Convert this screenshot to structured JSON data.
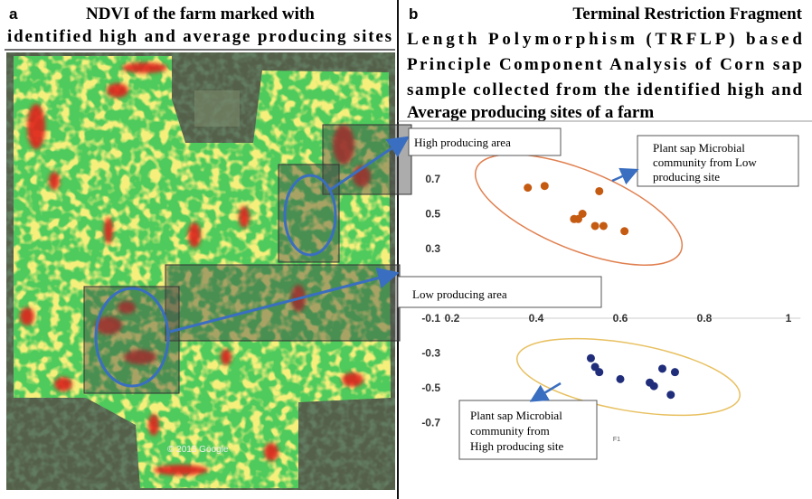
{
  "panel_a": {
    "letter": "a",
    "title_lines": [
      "NDVI of the farm marked with",
      "identified high and average producing sites"
    ],
    "map_credit": "© 2015 Google"
  },
  "panel_b": {
    "letter": "b",
    "title_lines": [
      "Terminal Restriction Fragment",
      "Length Polymorphism (TRFLP) based",
      "Principle Component Analysis of Corn sap",
      "sample collected from the identified high and",
      "Average producing sites of a farm"
    ]
  },
  "annotations": {
    "high_area": "High producing area",
    "low_area": "Low producing area",
    "low_site_lines": [
      "Plant sap Microbial",
      "community from Low",
      "producing site"
    ],
    "high_site_lines": [
      "Plant sap Microbial",
      "community from",
      "High producing site"
    ]
  },
  "chart_data": {
    "type": "scatter",
    "x_label": "F1",
    "xlim": [
      0.1,
      1.05
    ],
    "ylim": [
      -0.8,
      0.9
    ],
    "xticks": [
      0.2,
      0.4,
      0.6,
      0.8,
      1
    ],
    "yticks": [
      0.7,
      0.5,
      0.3,
      -0.1,
      -0.3,
      -0.5,
      -0.7
    ],
    "series": [
      {
        "color": "#c55a11",
        "x": [
          0.38,
          0.42,
          0.55,
          0.51,
          0.5,
          0.49,
          0.54,
          0.56,
          0.61
        ],
        "values": [
          0.65,
          0.66,
          0.63,
          0.5,
          0.47,
          0.47,
          0.43,
          0.43,
          0.4
        ]
      },
      {
        "color": "#1f2d7a",
        "x": [
          0.53,
          0.54,
          0.55,
          0.6,
          0.67,
          0.68,
          0.7,
          0.73,
          0.72
        ],
        "values": [
          -0.33,
          -0.38,
          -0.41,
          -0.45,
          -0.47,
          -0.49,
          -0.39,
          -0.41,
          -0.54
        ]
      }
    ]
  }
}
